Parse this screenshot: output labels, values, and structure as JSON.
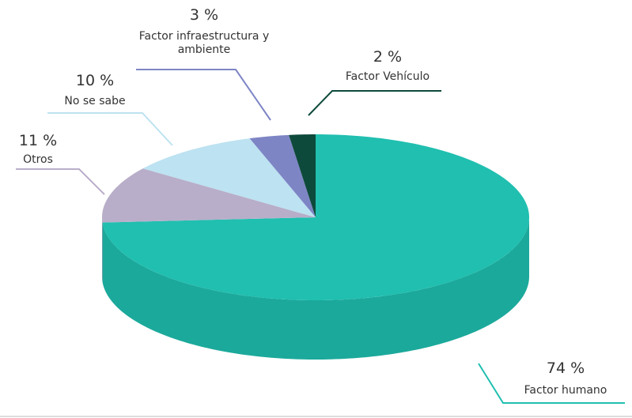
{
  "chart_data": {
    "type": "pie3d",
    "categories": [
      "Factor humano",
      "Otros",
      "No se sabe",
      "Factor infraestructura y ambiente",
      "Factor Vehículo"
    ],
    "values": [
      74,
      11,
      10,
      3,
      2
    ],
    "value_labels": [
      "74 %",
      "11 %",
      "10 %",
      "3 %",
      "2 %"
    ],
    "colors": [
      "#20bfb0",
      "#b8aec9",
      "#bde2f1",
      "#7e85c5",
      "#0d4a3b"
    ],
    "side_colors": [
      "#1ba99b",
      "#a096b2",
      "#a5cad9",
      "#686fae",
      "#083528"
    ]
  }
}
